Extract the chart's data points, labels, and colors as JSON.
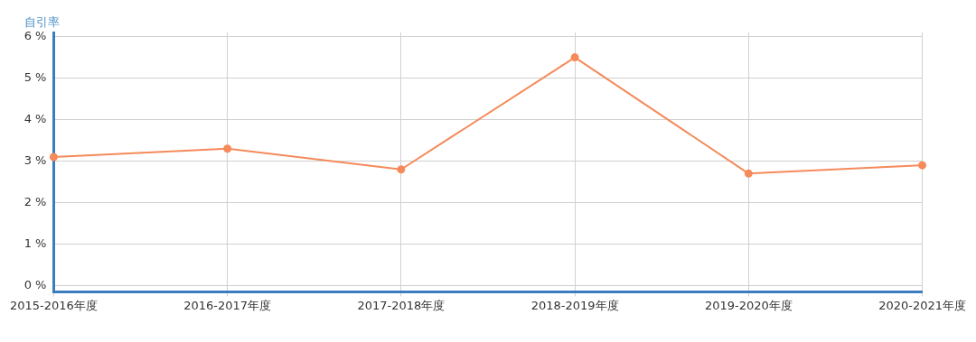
{
  "chart_data": {
    "type": "line",
    "ylabel": "自引率",
    "categories": [
      "2015-2016年度",
      "2016-2017年度",
      "2017-2018年度",
      "2018-2019年度",
      "2019-2020年度",
      "2020-2021年度"
    ],
    "series": [
      {
        "color": "#f58a5a",
        "values": [
          3.1,
          3.3,
          2.8,
          5.5,
          2.7,
          2.9
        ]
      }
    ],
    "ylim": [
      -0.15,
      6.1
    ],
    "yticks": [
      {
        "value": 0,
        "label": "0 %"
      },
      {
        "value": 1,
        "label": "1 %"
      },
      {
        "value": 2,
        "label": "2 %"
      },
      {
        "value": 3,
        "label": "3 %"
      },
      {
        "value": 4,
        "label": "4 %"
      },
      {
        "value": 5,
        "label": "5 %"
      },
      {
        "value": 6,
        "label": "6 %"
      }
    ],
    "grid": true,
    "legend": false,
    "marker": "circle",
    "line_style": "solid"
  }
}
